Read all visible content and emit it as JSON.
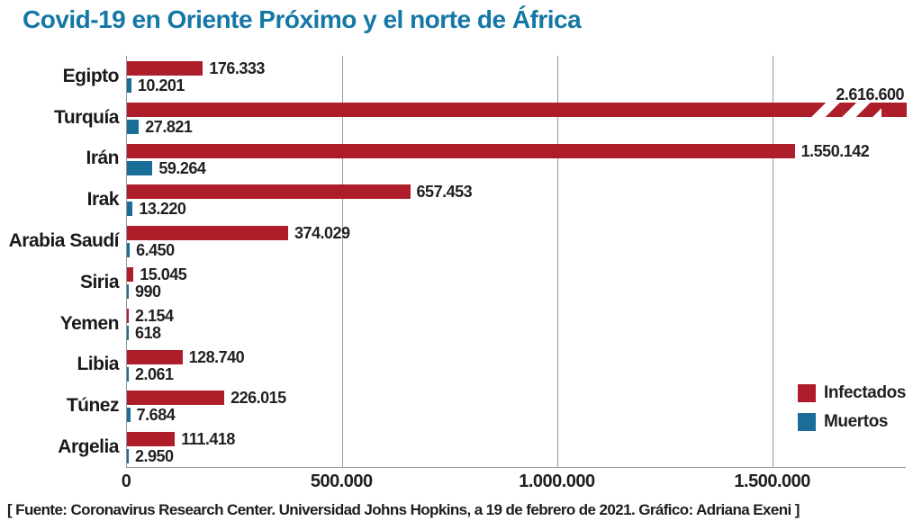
{
  "title": "Covid-19 en Oriente Próximo y el norte de África",
  "source_note": "[ Fuente: Coronavirus Research Center. Universidad Johns Hopkins, a 19 de febrero de 2021. Gráfico: Adriana Exeni ]",
  "colors": {
    "title": "#1577A5",
    "infected": "#AE1E2A",
    "deaths": "#196D96",
    "grid": "#999999",
    "text": "#231F20"
  },
  "legend": [
    {
      "label": "Infectados",
      "color": "#AE1E2A"
    },
    {
      "label": "Muertos",
      "color": "#196D96"
    }
  ],
  "chart_data": {
    "type": "bar",
    "orientation": "horizontal",
    "title": "Covid-19 en Oriente Próximo y el norte de África",
    "categories": [
      "Egipto",
      "Turquía",
      "Irán",
      "Irak",
      "Arabia Saudí",
      "Siria",
      "Yemen",
      "Libia",
      "Túnez",
      "Argelia"
    ],
    "series": [
      {
        "name": "Infectados",
        "color": "#AE1E2A",
        "values": [
          176333,
          2616600,
          1550142,
          657453,
          374029,
          15045,
          2154,
          128740,
          226015,
          111418
        ],
        "labels": [
          "176.333",
          "2.616.600",
          "1.550.142",
          "657.453",
          "374.029",
          "15.045",
          "2.154",
          "128.740",
          "226.015",
          "111.418"
        ]
      },
      {
        "name": "Muertos",
        "color": "#196D96",
        "values": [
          10201,
          27821,
          59264,
          13220,
          6450,
          990,
          618,
          2061,
          7684,
          2950
        ],
        "labels": [
          "10.201",
          "27.821",
          "59.264",
          "13.220",
          "6.450",
          "990",
          "618",
          "2.061",
          "7.684",
          "2.950"
        ]
      }
    ],
    "x_axis": {
      "ticks": [
        0,
        500000,
        1000000,
        1500000
      ],
      "tick_labels": [
        "0",
        "500.000",
        "1.000.000",
        "1.500.000"
      ],
      "display_max": 1810000
    },
    "clamped_categories": [
      "Turquía"
    ],
    "clamped_note": "Turquía bar exceeds axis range; drawn clipped with white break hatch, value labeled above the bar",
    "grid": "vertical-gridlines-on",
    "legend_position": "bottom-right"
  }
}
